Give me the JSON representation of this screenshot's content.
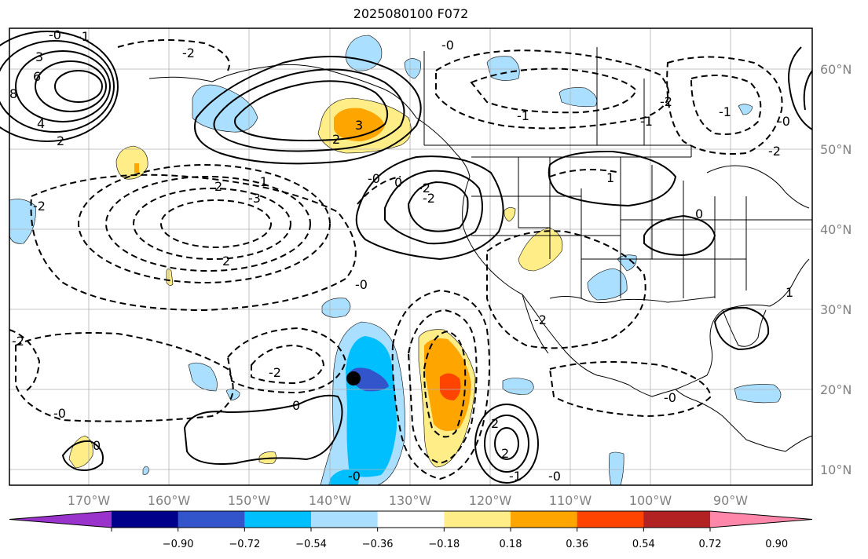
{
  "title": "2025080100 F072",
  "lon_labels": [
    "170°W",
    "160°W",
    "150°W",
    "140°W",
    "130°W",
    "120°W",
    "110°W",
    "100°W",
    "90°W"
  ],
  "lat_labels": [
    "60°N",
    "50°N",
    "40°N",
    "30°N",
    "20°N",
    "10°N"
  ],
  "colorbar": {
    "colors": [
      "#9933cc",
      "#00008b",
      "#3355cc",
      "#00bfff",
      "#aadfff",
      "#ffffff",
      "#ffee88",
      "#ffa500",
      "#ff4400",
      "#b22222",
      "#ff88aa"
    ],
    "tick_labels": [
      "−0.90",
      "−0.72",
      "−0.54",
      "−0.36",
      "−0.18",
      "0.18",
      "0.36",
      "0.54",
      "0.72",
      "0.90"
    ]
  },
  "contour_labels": [
    "-0",
    "-1",
    "3",
    "6",
    "8",
    "4",
    "2",
    "-2",
    "-0",
    "-1",
    "3",
    "2",
    "-2",
    "-1",
    "-1",
    "-0",
    "-2",
    "1",
    "-2",
    "2",
    "-1",
    "2",
    "-2",
    "-3",
    "-2",
    "0",
    "0",
    "-2",
    "-0",
    "-2",
    "0",
    "-0",
    "-0",
    "-0",
    "2",
    "2",
    "-1",
    "-0",
    "-0",
    "0",
    "-2",
    "1"
  ],
  "marker": "storm-center"
}
